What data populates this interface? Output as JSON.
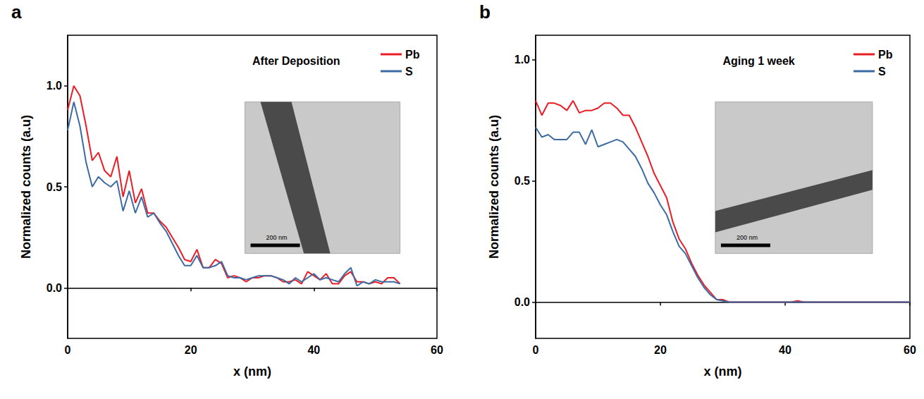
{
  "chart_data": [
    {
      "type": "line",
      "panel_label": "a",
      "annotation": "After Deposition",
      "inset_scale_bar": "200 nm",
      "x_label": "x (nm)",
      "y_label": "Normalized counts (a.u)",
      "x": [
        0,
        1,
        2,
        3,
        4,
        5,
        6,
        7,
        8,
        9,
        10,
        11,
        12,
        13,
        14,
        15,
        16,
        17,
        18,
        19,
        20,
        21,
        22,
        23,
        24,
        25,
        26,
        27,
        28,
        29,
        30,
        31,
        32,
        33,
        34,
        35,
        36,
        37,
        38,
        39,
        40,
        41,
        42,
        43,
        44,
        45,
        46,
        47,
        48,
        49,
        50,
        51,
        52,
        53,
        54
      ],
      "series": [
        {
          "name": "Pb",
          "color": "#ec1c24",
          "values": [
            0.88,
            1.0,
            0.95,
            0.8,
            0.63,
            0.67,
            0.58,
            0.55,
            0.65,
            0.45,
            0.58,
            0.42,
            0.49,
            0.37,
            0.37,
            0.33,
            0.3,
            0.25,
            0.2,
            0.14,
            0.13,
            0.19,
            0.1,
            0.1,
            0.14,
            0.12,
            0.05,
            0.06,
            0.05,
            0.03,
            0.05,
            0.05,
            0.06,
            0.06,
            0.05,
            0.03,
            0.03,
            0.04,
            0.02,
            0.08,
            0.06,
            0.04,
            0.07,
            0.02,
            0.02,
            0.06,
            0.08,
            0.03,
            0.03,
            0.02,
            0.03,
            0.02,
            0.05,
            0.05,
            0.02
          ]
        },
        {
          "name": "S",
          "color": "#3b6ba5",
          "values": [
            0.78,
            0.92,
            0.8,
            0.62,
            0.5,
            0.55,
            0.52,
            0.5,
            0.53,
            0.38,
            0.48,
            0.37,
            0.45,
            0.35,
            0.37,
            0.32,
            0.28,
            0.22,
            0.16,
            0.11,
            0.11,
            0.16,
            0.1,
            0.1,
            0.11,
            0.13,
            0.06,
            0.05,
            0.05,
            0.04,
            0.05,
            0.06,
            0.06,
            0.06,
            0.05,
            0.04,
            0.02,
            0.05,
            0.03,
            0.05,
            0.07,
            0.04,
            0.05,
            0.04,
            0.03,
            0.07,
            0.1,
            0.01,
            0.03,
            0.02,
            0.04,
            0.03,
            0.03,
            0.03,
            0.02
          ]
        }
      ],
      "xlim": [
        0,
        60
      ],
      "xticks": [
        0,
        20,
        40,
        60
      ],
      "ylim": [
        -0.25,
        1.25
      ],
      "yticks": [
        {
          "value": 0,
          "label": "0.0"
        },
        {
          "value": 0.5,
          "label": "0.5"
        },
        {
          "value": 1,
          "label": "1.0"
        }
      ],
      "grid": false,
      "legend": "upper right"
    },
    {
      "type": "line",
      "panel_label": "b",
      "annotation": "Aging 1 week",
      "inset_scale_bar": "200 nm",
      "x_label": "x (nm)",
      "y_label": "Normalized counts (a.u)",
      "x": [
        0,
        1,
        2,
        3,
        4,
        5,
        6,
        7,
        8,
        9,
        10,
        11,
        12,
        13,
        14,
        15,
        16,
        17,
        18,
        19,
        20,
        21,
        22,
        23,
        24,
        25,
        26,
        27,
        28,
        29,
        30,
        31,
        32,
        33,
        34,
        35,
        36,
        37,
        38,
        39,
        40,
        41,
        42,
        43,
        44,
        45,
        46,
        47,
        48,
        49,
        50,
        51,
        52,
        53,
        54,
        55,
        56,
        57,
        58,
        59,
        60
      ],
      "series": [
        {
          "name": "Pb",
          "color": "#ec1c24",
          "values": [
            0.83,
            0.77,
            0.82,
            0.82,
            0.81,
            0.79,
            0.83,
            0.78,
            0.79,
            0.79,
            0.8,
            0.82,
            0.82,
            0.8,
            0.77,
            0.77,
            0.72,
            0.66,
            0.6,
            0.53,
            0.48,
            0.43,
            0.33,
            0.26,
            0.22,
            0.16,
            0.11,
            0.07,
            0.04,
            0.01,
            0.01,
            0,
            0,
            0,
            0,
            0,
            0,
            0,
            0,
            0,
            0,
            0,
            0.005,
            0,
            0,
            0,
            0,
            0,
            0,
            0,
            0,
            0,
            0,
            0,
            0,
            0,
            0,
            0,
            0,
            0,
            0
          ]
        },
        {
          "name": "S",
          "color": "#3b6ba5",
          "values": [
            0.72,
            0.68,
            0.69,
            0.67,
            0.67,
            0.67,
            0.7,
            0.7,
            0.65,
            0.71,
            0.64,
            0.65,
            0.66,
            0.67,
            0.66,
            0.63,
            0.6,
            0.55,
            0.49,
            0.45,
            0.4,
            0.36,
            0.29,
            0.23,
            0.2,
            0.15,
            0.1,
            0.06,
            0.03,
            0.01,
            0.005,
            0,
            0,
            0,
            0,
            0,
            0,
            0,
            0,
            0,
            0,
            0,
            0,
            0,
            0,
            0,
            0,
            0,
            0,
            0,
            0,
            0,
            0,
            0,
            0,
            0,
            0,
            0,
            0,
            0,
            0
          ]
        }
      ],
      "xlim": [
        0,
        60
      ],
      "xticks": [
        0,
        20,
        40,
        60
      ],
      "ylim": [
        -0.15,
        1.1
      ],
      "yticks": [
        {
          "value": 0,
          "label": "0.0"
        },
        {
          "value": 0.5,
          "label": "0.5"
        },
        {
          "value": 1,
          "label": "1.0"
        }
      ],
      "grid": false,
      "legend": "upper right"
    }
  ]
}
